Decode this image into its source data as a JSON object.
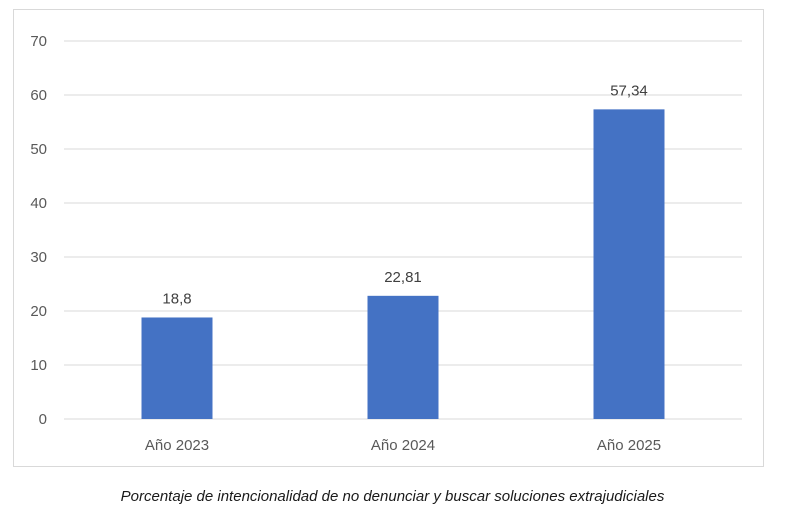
{
  "chart_data": {
    "type": "bar",
    "categories": [
      "Año 2023",
      "Año 2024",
      "Año 2025"
    ],
    "values": [
      18.8,
      22.81,
      57.34
    ],
    "value_labels": [
      "18,8",
      "22,81",
      "57,34"
    ],
    "title": "",
    "xlabel": "",
    "ylabel": "",
    "ylim": [
      0,
      70
    ],
    "yticks": [
      0,
      10,
      20,
      30,
      40,
      50,
      60,
      70
    ],
    "grid": true,
    "legend": "none",
    "bar_color": "#4472C4",
    "grid_color": "#d9d9d9"
  },
  "caption": "Porcentaje de intencionalidad de no denunciar y buscar soluciones extrajudiciales"
}
